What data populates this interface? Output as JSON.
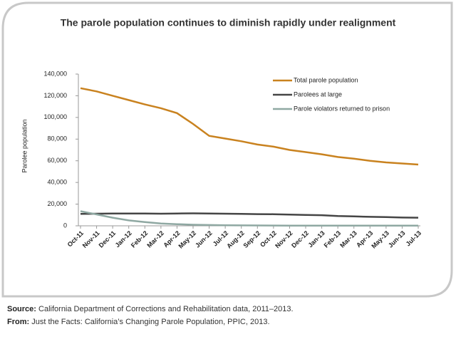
{
  "chart_data": {
    "type": "line",
    "title": "The parole population continues to diminish rapidly under realignment",
    "y_label": "Parolee population",
    "categories": [
      "Oct-11",
      "Nov-11",
      "Dec-11",
      "Jan-12",
      "Feb-12",
      "Mar-12",
      "Apr-12",
      "May-12",
      "Jun-12",
      "Jul-12",
      "Aug-12",
      "Sep-12",
      "Oct-12",
      "Nov-12",
      "Dec-12",
      "Jan-13",
      "Feb-13",
      "Mar-13",
      "Apr-13",
      "May-13",
      "Jun-13",
      "Jul-13"
    ],
    "series": [
      {
        "name": "Total parole population",
        "color": "#c9821f",
        "values": [
          127000,
          124000,
          120000,
          116000,
          112000,
          108500,
          104000,
          94000,
          83000,
          80500,
          78000,
          75000,
          73000,
          70000,
          68000,
          66000,
          63500,
          62000,
          60000,
          58500,
          57500,
          56500
        ]
      },
      {
        "name": "Parolees at large",
        "color": "#454545",
        "values": [
          11000,
          11200,
          11300,
          11400,
          11400,
          11200,
          11400,
          11500,
          11400,
          11200,
          11000,
          10800,
          10700,
          10300,
          10000,
          9800,
          9000,
          8700,
          8300,
          8000,
          7600,
          7500
        ]
      },
      {
        "name": "Parole violators returned to prison",
        "color": "#8fa8a2",
        "values": [
          13500,
          10500,
          7500,
          5000,
          3500,
          2200,
          1500,
          1000,
          700,
          500,
          400,
          300,
          250,
          200,
          200,
          150,
          150,
          150,
          100,
          100,
          100,
          100
        ]
      }
    ],
    "ylim": [
      0,
      140000
    ],
    "yticks": [
      0,
      {
        "value": 20000,
        "label": "20,000"
      },
      {
        "value": 40000,
        "label": "40,000"
      },
      {
        "value": 60000,
        "label": "60,000"
      },
      {
        "value": 80000,
        "label": "80,000"
      },
      {
        "value": 100000,
        "label": "100,000"
      },
      {
        "value": 120000,
        "label": "120,000"
      },
      {
        "value": 140000,
        "label": "140,000"
      }
    ]
  },
  "footer": {
    "source_label": "Source:",
    "source_text": "California Department of Corrections and Rehabilitation data, 2011–2013.",
    "from_label": "From:",
    "from_text": "Just the Facts: California’s Changing Parole Population, PPIC, 2013."
  }
}
